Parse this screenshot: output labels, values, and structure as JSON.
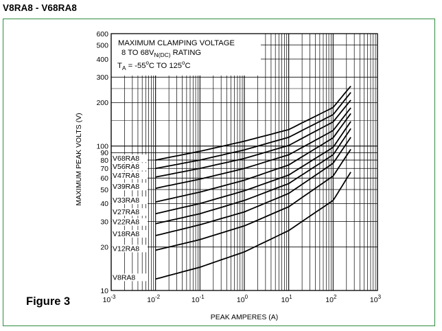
{
  "page": {
    "title": "V8RA8 - V68RA8",
    "figure_label": "Figure 3",
    "frame_color": "#2e8b3d"
  },
  "chart_data": {
    "type": "line",
    "xlabel": "PEAK AMPERES (A)",
    "ylabel": "MAXIMUM PEAK VOLTS (V)",
    "x_scale": "log",
    "y_scale": "log",
    "xlim": [
      0.001,
      1000
    ],
    "ylim": [
      10,
      600
    ],
    "grid": true,
    "x_ticks": [
      {
        "value": 0.001,
        "mantissa": "10",
        "exp": "-3"
      },
      {
        "value": 0.01,
        "mantissa": "10",
        "exp": "-2"
      },
      {
        "value": 0.1,
        "mantissa": "10",
        "exp": "-1"
      },
      {
        "value": 1,
        "mantissa": "10",
        "exp": "0"
      },
      {
        "value": 10,
        "mantissa": "10",
        "exp": "1"
      },
      {
        "value": 100,
        "mantissa": "10",
        "exp": "2"
      },
      {
        "value": 1000,
        "mantissa": "10",
        "exp": "3"
      }
    ],
    "y_ticks": [
      {
        "value": 10,
        "label": "10"
      },
      {
        "value": 20,
        "label": "20"
      },
      {
        "value": 30,
        "label": "30"
      },
      {
        "value": 40,
        "label": "40"
      },
      {
        "value": 50,
        "label": "50"
      },
      {
        "value": 60,
        "label": "60"
      },
      {
        "value": 70,
        "label": "70"
      },
      {
        "value": 80,
        "label": "80"
      },
      {
        "value": 90,
        "label": "90"
      },
      {
        "value": 100,
        "label": "100"
      },
      {
        "value": 200,
        "label": "200"
      },
      {
        "value": 300,
        "label": "300"
      },
      {
        "value": 400,
        "label": "400"
      },
      {
        "value": 500,
        "label": "500"
      },
      {
        "value": 600,
        "label": "600"
      }
    ],
    "annotation": {
      "line1": "MAXIMUM CLAMPING VOLTAGE",
      "line2_main": "8 TO 68V",
      "line2_sub": "N(DC)",
      "line2_rest": " RATING",
      "line3_t": "T",
      "line3_a": "A",
      "line3_p1": " = -55",
      "line3_deg1": "o",
      "line3_p2": "C TO 125",
      "line3_deg2": "o",
      "line3_p3": "C"
    },
    "series": [
      {
        "name": "V68RA8",
        "x": [
          0.01,
          0.1,
          1,
          10,
          100,
          250
        ],
        "y": [
          80,
          92,
          108,
          130,
          185,
          260
        ]
      },
      {
        "name": "V56RA8",
        "x": [
          0.01,
          0.1,
          1,
          10,
          100,
          250
        ],
        "y": [
          70,
          80,
          94,
          115,
          165,
          235
        ]
      },
      {
        "name": "V47RA8",
        "x": [
          0.01,
          0.1,
          1,
          10,
          100,
          250
        ],
        "y": [
          61,
          70,
          82,
          101,
          147,
          208
        ]
      },
      {
        "name": "V39RA8",
        "x": [
          0.01,
          0.1,
          1,
          10,
          100,
          250
        ],
        "y": [
          51,
          59,
          70,
          87,
          128,
          184
        ]
      },
      {
        "name": "V33RA8",
        "x": [
          0.01,
          0.1,
          1,
          10,
          100,
          250
        ],
        "y": [
          41,
          48,
          58,
          74,
          114,
          168
        ]
      },
      {
        "name": "V27RA8",
        "x": [
          0.01,
          0.1,
          1,
          10,
          100,
          250
        ],
        "y": [
          34,
          40,
          49,
          63,
          98,
          148
        ]
      },
      {
        "name": "V22RA8",
        "x": [
          0.01,
          0.1,
          1,
          10,
          100,
          250
        ],
        "y": [
          29,
          34,
          42,
          55,
          87,
          132
        ]
      },
      {
        "name": "V18RA8",
        "x": [
          0.01,
          0.1,
          1,
          10,
          100,
          250
        ],
        "y": [
          24,
          28.5,
          35,
          47,
          76,
          115
        ]
      },
      {
        "name": "V12RA8",
        "x": [
          0.01,
          0.1,
          1,
          10,
          100,
          250
        ],
        "y": [
          19,
          22.5,
          28,
          38,
          62,
          95
        ]
      },
      {
        "name": "V8RA8",
        "x": [
          0.01,
          0.1,
          1,
          10,
          100,
          250
        ],
        "y": [
          12,
          14.5,
          18.5,
          26,
          42,
          66
        ]
      }
    ]
  }
}
